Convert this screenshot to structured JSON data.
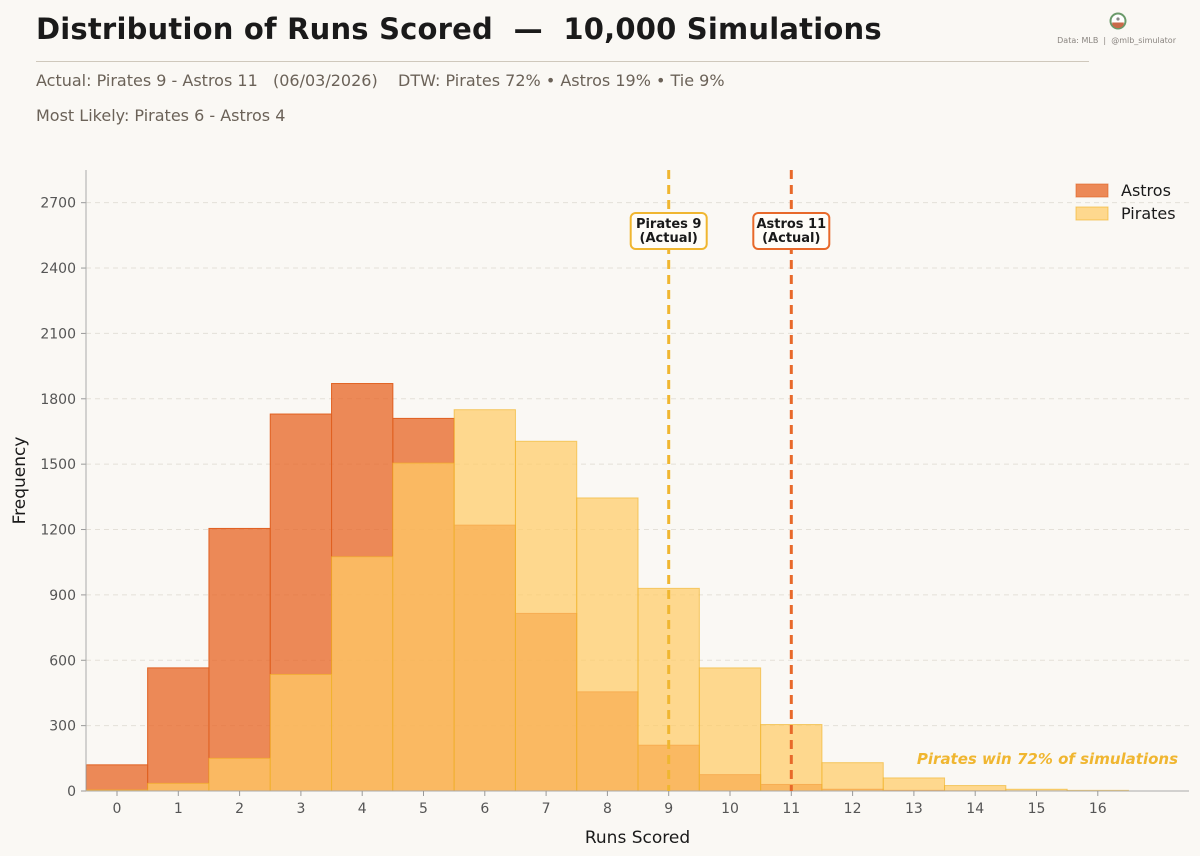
{
  "header": {
    "title": "Distribution of Runs Scored  —  10,000 Simulations",
    "subtitle_line1": "Actual: Pirates 9 - Astros 11   (06/03/2026)    DTW: Pirates 72% • Astros 19% • Tie 9%",
    "subtitle_line2": "Most Likely: Pirates 6 - Astros 4",
    "credit": "Data: MLB  |  @mlb_simulator",
    "logo_icon": "baseball-logo-icon"
  },
  "chart_data": {
    "type": "bar",
    "title": "",
    "xlabel": "Runs Scored",
    "ylabel": "Frequency",
    "categories": [
      0,
      1,
      2,
      3,
      4,
      5,
      6,
      7,
      8,
      9,
      10,
      11,
      12,
      13,
      14,
      15,
      16
    ],
    "xticks": [
      "0",
      "1",
      "2",
      "3",
      "4",
      "5",
      "6",
      "7",
      "8",
      "9",
      "10",
      "11",
      "12",
      "13",
      "14",
      "15",
      "16"
    ],
    "yticks": [
      "0",
      "300",
      "600",
      "900",
      "1200",
      "1500",
      "1800",
      "2100",
      "2400",
      "2700"
    ],
    "ylim": [
      0,
      2700
    ],
    "grid": true,
    "legend_position": "top-right",
    "series": [
      {
        "name": "Astros",
        "color": "#e8692a",
        "values": [
          120,
          565,
          1205,
          1730,
          1870,
          1710,
          1220,
          815,
          455,
          210,
          75,
          30,
          8,
          3,
          1,
          0,
          0
        ]
      },
      {
        "name": "Pirates",
        "color": "#ffcc66",
        "values": [
          5,
          35,
          150,
          535,
          1075,
          1505,
          1750,
          1605,
          1345,
          930,
          565,
          305,
          130,
          60,
          25,
          8,
          3
        ]
      }
    ],
    "reference_lines": [
      {
        "x": 9,
        "label_line1": "Pirates 9",
        "label_line2": "(Actual)",
        "color": "#f0b630"
      },
      {
        "x": 11,
        "label_line1": "Astros 11",
        "label_line2": "(Actual)",
        "color": "#e8692a"
      }
    ],
    "annotation": "Pirates win 72% of simulations",
    "annotation_color": "#f0b630"
  }
}
